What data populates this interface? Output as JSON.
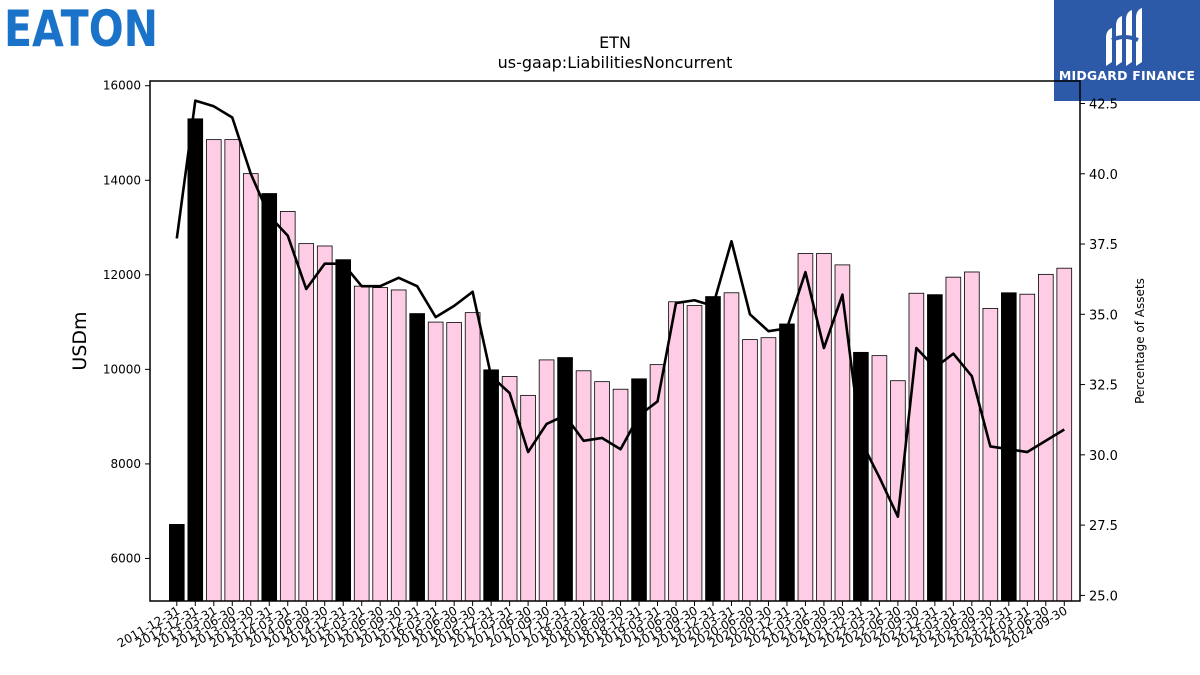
{
  "brand": {
    "left_logo": "EATON",
    "right_logo": "MIDGARD FINANCE",
    "right_color": "#2d5aa8",
    "left_color": "#1a73c8"
  },
  "chart_data": {
    "type": "bar",
    "title": "ETN",
    "subtitle": "us-gaap:LiabilitiesNoncurrent",
    "ylabel": "USDm",
    "y2label": "Percentage of Assets",
    "ylim": [
      5100,
      16100
    ],
    "y2lim": [
      24.8,
      43.3
    ],
    "yticks": [
      6000,
      8000,
      10000,
      12000,
      14000,
      16000
    ],
    "y2ticks": [
      "25.0",
      "27.5",
      "30.0",
      "32.5",
      "35.0",
      "37.5",
      "40.0",
      "42.5"
    ],
    "bar_color_annual": "#000000",
    "bar_color_quarter": "#ffcce6",
    "line_color": "#000000",
    "categories": [
      "2011-12-31",
      "2012-12-31",
      "2013-03-31",
      "2013-06-30",
      "2013-09-30",
      "2013-12-31",
      "2014-03-31",
      "2014-06-30",
      "2014-09-30",
      "2014-12-31",
      "2015-03-31",
      "2015-06-30",
      "2015-09-30",
      "2015-12-31",
      "2016-03-31",
      "2016-06-30",
      "2016-09-30",
      "2016-12-31",
      "2017-03-31",
      "2017-06-30",
      "2017-09-30",
      "2017-12-31",
      "2018-03-31",
      "2018-06-30",
      "2018-09-30",
      "2018-12-31",
      "2019-03-31",
      "2019-06-30",
      "2019-09-30",
      "2019-12-31",
      "2020-03-31",
      "2020-06-30",
      "2020-09-30",
      "2020-12-31",
      "2021-03-31",
      "2021-06-30",
      "2021-09-30",
      "2021-12-31",
      "2022-03-31",
      "2022-06-30",
      "2022-09-30",
      "2022-12-31",
      "2023-03-31",
      "2023-06-30",
      "2023-09-30",
      "2023-12-31",
      "2024-03-31",
      "2024-06-30",
      "2024-09-30"
    ],
    "series": [
      {
        "values": [
          6720,
          15300,
          14860,
          14860,
          14140,
          13720,
          13340,
          12660,
          12610,
          12320,
          11760,
          11730,
          11680,
          11180,
          11000,
          10990,
          11200,
          9990,
          9850,
          9450,
          10200,
          10250,
          9970,
          9740,
          9580,
          9800,
          10100,
          11430,
          11350,
          11540,
          11620,
          10630,
          10670,
          10960,
          12450,
          12450,
          12210,
          10360,
          10290,
          9760,
          11610,
          11580,
          11950,
          12060,
          11290,
          11620,
          11590,
          12010,
          12140
        ],
        "annual": [
          true,
          true,
          false,
          false,
          false,
          true,
          false,
          false,
          false,
          true,
          false,
          false,
          false,
          true,
          false,
          false,
          false,
          true,
          false,
          false,
          false,
          true,
          false,
          false,
          false,
          true,
          false,
          false,
          false,
          true,
          false,
          false,
          false,
          true,
          false,
          false,
          false,
          true,
          false,
          false,
          false,
          true,
          false,
          false,
          false,
          true,
          false,
          false,
          false
        ]
      },
      {
        "name": "Percentage of Assets",
        "values": [
          37.7,
          42.6,
          42.4,
          42.0,
          40.0,
          38.5,
          37.8,
          35.9,
          36.8,
          36.8,
          36.0,
          36.0,
          36.3,
          36.0,
          34.9,
          35.3,
          35.8,
          32.8,
          32.2,
          30.1,
          31.1,
          31.4,
          30.5,
          30.6,
          30.2,
          31.4,
          31.9,
          35.4,
          35.5,
          35.3,
          37.6,
          35.0,
          34.4,
          34.5,
          36.5,
          33.8,
          35.7,
          30.5,
          29.2,
          27.8,
          33.8,
          33.1,
          33.6,
          32.8,
          30.3,
          30.2,
          30.1,
          30.5,
          30.9
        ]
      }
    ]
  }
}
